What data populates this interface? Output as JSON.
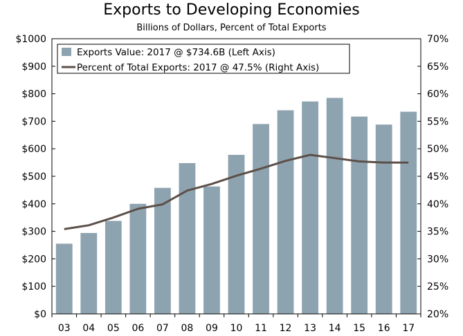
{
  "chart_data": {
    "type": "bar",
    "title": "Exports to Developing Economies",
    "subtitle": "Billions of Dollars, Percent of Total Exports",
    "categories": [
      "03",
      "04",
      "05",
      "06",
      "07",
      "08",
      "09",
      "10",
      "11",
      "12",
      "13",
      "14",
      "15",
      "16",
      "17"
    ],
    "series": [
      {
        "name": "Exports Value: 2017 @ $734.6B (Left Axis)",
        "type": "bar",
        "axis": "left",
        "color": "#8ea3b0",
        "values": [
          255,
          294,
          338,
          400,
          458,
          548,
          463,
          578,
          690,
          740,
          772,
          785,
          717,
          688,
          734.6
        ]
      },
      {
        "name": "Percent of Total Exports: 2017 @ 47.5% (Right Axis)",
        "type": "line",
        "axis": "right",
        "color": "#5c4f48",
        "values": [
          35.4,
          36.1,
          37.5,
          39.1,
          39.9,
          42.4,
          43.6,
          45.1,
          46.4,
          47.8,
          48.9,
          48.3,
          47.7,
          47.5,
          47.5
        ]
      }
    ],
    "y_left": {
      "ylim": [
        0,
        1000
      ],
      "ticks": [
        0,
        100,
        200,
        300,
        400,
        500,
        600,
        700,
        800,
        900,
        1000
      ],
      "tick_labels": [
        "$0",
        "$100",
        "$200",
        "$300",
        "$400",
        "$500",
        "$600",
        "$700",
        "$800",
        "$900",
        "$1000"
      ]
    },
    "y_right": {
      "ylim": [
        20,
        70
      ],
      "ticks": [
        20,
        25,
        30,
        35,
        40,
        45,
        50,
        55,
        60,
        65,
        70
      ],
      "tick_labels": [
        "20%",
        "25%",
        "30%",
        "35%",
        "40%",
        "45%",
        "50%",
        "55%",
        "60%",
        "65%",
        "70%"
      ]
    },
    "legend_position": "top-left"
  }
}
